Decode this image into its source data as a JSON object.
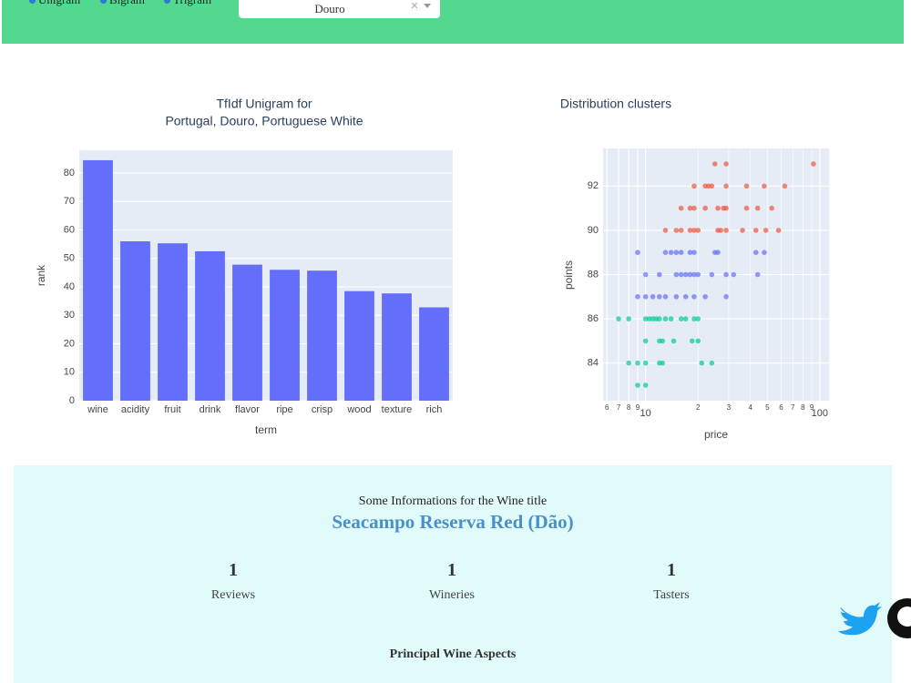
{
  "header": {
    "radio_options": [
      "Unigram",
      "Bigram",
      "Trigram"
    ],
    "dropdown_value": "Douro"
  },
  "chart_data": [
    {
      "type": "bar",
      "title": [
        "TfIdf Unigram for",
        "Portugal, Douro, Portuguese White"
      ],
      "x_label": "term",
      "y_label": "rank",
      "categories": [
        "wine",
        "acidity",
        "fruit",
        "drink",
        "flavor",
        "ripe",
        "crisp",
        "wood",
        "texture",
        "rich"
      ],
      "values": [
        84.5,
        56,
        55.3,
        52.5,
        47.8,
        46,
        45.7,
        38.5,
        37.7,
        32.8
      ],
      "color": "#636efa",
      "ylim": [
        0,
        88
      ],
      "yticks": [
        0,
        10,
        20,
        30,
        40,
        50,
        60,
        70,
        80
      ],
      "grid": true
    },
    {
      "type": "scatter",
      "title": "Distribution clusters",
      "x_label": "price",
      "y_label": "points",
      "log_x": true,
      "grid": true,
      "xlim": [
        5.7,
        113
      ],
      "ylim": [
        82.3,
        93.7
      ],
      "xticks": [
        6,
        7,
        8,
        9,
        10,
        {
          "value": 20,
          "label": "2"
        },
        {
          "value": 30,
          "label": "3"
        },
        {
          "value": 40,
          "label": "4"
        },
        {
          "value": 50,
          "label": "5"
        },
        {
          "value": 60,
          "label": "6"
        },
        {
          "value": 70,
          "label": "7"
        },
        {
          "value": 80,
          "label": "8"
        },
        {
          "value": 90,
          "label": "9"
        },
        100
      ],
      "yticks": [
        84,
        86,
        88,
        90,
        92
      ],
      "series": [
        {
          "color": "#ef553b",
          "x": [
            25,
            29,
            92,
            19,
            22,
            23,
            24,
            29,
            38,
            48,
            63,
            16,
            18,
            19,
            22,
            26,
            28,
            29,
            38,
            44,
            53,
            13,
            15,
            16,
            18,
            19,
            20,
            26,
            27,
            29,
            36,
            43,
            49,
            58
          ],
          "values": [
            93,
            93,
            93,
            92,
            92,
            92,
            92,
            92,
            92,
            92,
            92,
            91,
            91,
            91,
            91,
            91,
            91,
            91,
            91,
            91,
            91,
            90,
            90,
            90,
            90,
            90,
            90,
            90,
            90,
            90,
            90,
            90,
            90,
            90
          ]
        },
        {
          "color": "#636efa",
          "x": [
            9,
            13,
            14,
            15,
            16,
            18,
            19,
            25,
            26,
            43,
            48,
            10,
            12,
            15,
            16,
            17,
            18,
            19,
            20,
            24,
            29,
            32,
            44,
            9,
            10,
            11,
            12,
            13,
            15,
            17,
            19,
            22,
            29
          ],
          "values": [
            89,
            89,
            89,
            89,
            89,
            89,
            89,
            89,
            89,
            89,
            89,
            88,
            88,
            88,
            88,
            88,
            88,
            88,
            88,
            88,
            88,
            88,
            88,
            87,
            87,
            87,
            87,
            87,
            87,
            87,
            87,
            87,
            87
          ]
        },
        {
          "color": "#00cc96",
          "x": [
            7,
            8,
            10,
            10.5,
            11,
            11.5,
            12,
            13,
            14,
            16,
            17,
            19,
            20,
            10,
            12,
            12.5,
            14.5,
            18.5,
            20,
            8,
            9,
            10,
            12,
            12.5,
            21,
            24,
            9,
            10
          ],
          "values": [
            86,
            86,
            86,
            86,
            86,
            86,
            86,
            86,
            86,
            86,
            86,
            86,
            86,
            85,
            85,
            85,
            85,
            85,
            85,
            84,
            84,
            84,
            84,
            84,
            84,
            84,
            83,
            83
          ]
        }
      ]
    }
  ],
  "info": {
    "heading": "Some Informations for the Wine title",
    "wine_title": "Seacampo Reserva Red (Dão)",
    "stats": [
      {
        "value": "1",
        "label": "Reviews"
      },
      {
        "value": "1",
        "label": "Wineries"
      },
      {
        "value": "1",
        "label": "Tasters"
      }
    ],
    "aspects_title": "Principal Wine Aspects"
  }
}
